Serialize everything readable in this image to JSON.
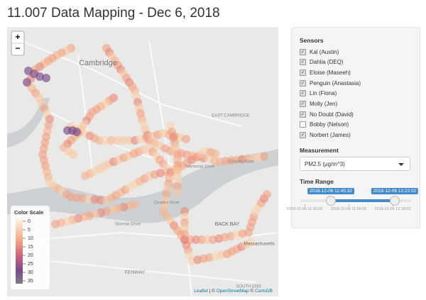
{
  "header": {
    "title": "11.007 Data Mapping - Dec 6, 2018"
  },
  "map": {
    "zoom_in": "+",
    "zoom_out": "−",
    "labels": [
      "Cambridge",
      "EAST CAMBRIDGE",
      "Memorial Drive",
      "Charles River",
      "Storrow Drive",
      "BACK BAY",
      "Massachusetts",
      "FENWAY",
      "SOUTH END",
      "Charles River"
    ],
    "legend": {
      "title": "Color Scale",
      "ticks": [
        0,
        5,
        10,
        15,
        20,
        25,
        30,
        35
      ]
    },
    "attribution": {
      "leaflet": "Leaflet",
      "sep1": "| ©",
      "osm": "OpenStreetMap",
      "sep2": "©",
      "carto": "CartoDB"
    }
  },
  "sidebar": {
    "sensors_label": "Sensors",
    "sensors": [
      {
        "name": "Kal (Austin)",
        "checked": true
      },
      {
        "name": "Dahlia (DEQ)",
        "checked": true
      },
      {
        "name": "Eloise (Maseeh)",
        "checked": true
      },
      {
        "name": "Penguin (Anastasia)",
        "checked": true
      },
      {
        "name": "Lin (Fiona)",
        "checked": true
      },
      {
        "name": "Molly (Jen)",
        "checked": true
      },
      {
        "name": "No Doubt (David)",
        "checked": true
      },
      {
        "name": "Bobby (Nelson)",
        "checked": false
      },
      {
        "name": "Norbert (James)",
        "checked": true
      }
    ],
    "measurement_label": "Measurement",
    "measurement": "PM2.5 (μg/m^3)",
    "time_label": "Time Range",
    "slider": {
      "from": "2018-12-06 11:45:32",
      "to": "2018-12-06 12:22:02",
      "ticks": [
        "2018-12-06 11:30:02",
        "2018-12-06 11:54:02",
        "2018-12-06 12:18:02"
      ]
    }
  }
}
